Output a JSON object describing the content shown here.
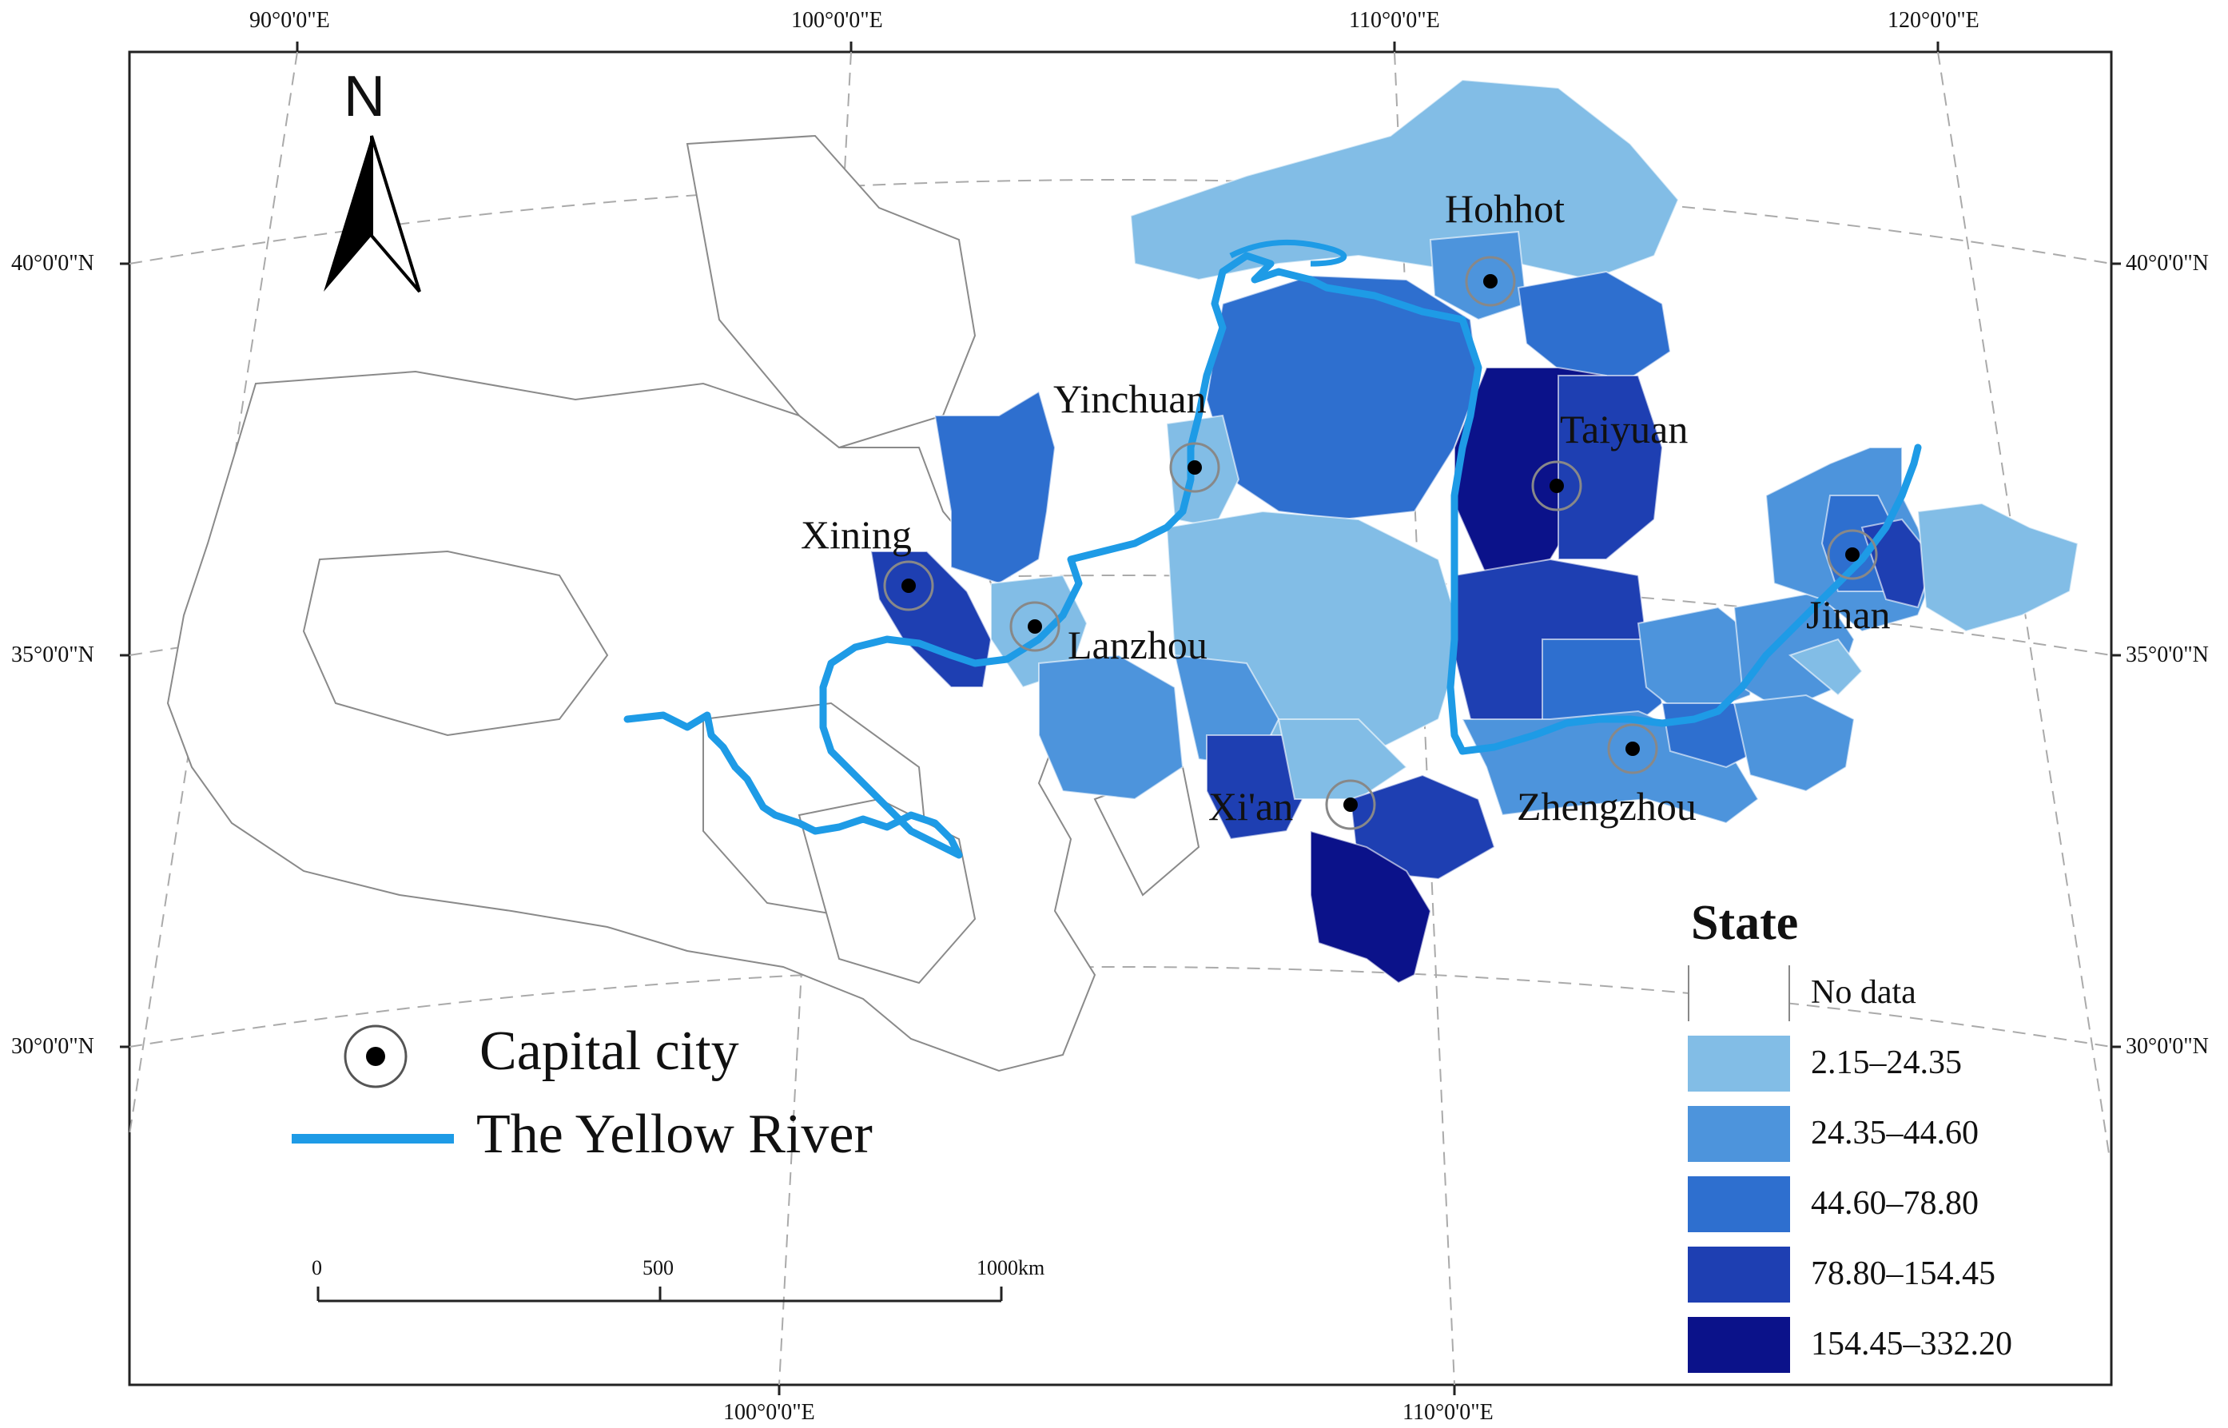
{
  "graticule": {
    "top": [
      "90°0'0\"E",
      "100°0'0\"E",
      "110°0'0\"E",
      "120°0'0\"E"
    ],
    "bottom": [
      "100°0'0\"E",
      "110°0'0\"E"
    ],
    "left": [
      "40°0'0\"N",
      "35°0'0\"N",
      "30°0'0\"N"
    ],
    "right": [
      "40°0'0\"N",
      "35°0'0\"N",
      "30°0'0\"N"
    ]
  },
  "north_arrow": {
    "letter": "N"
  },
  "cities": [
    {
      "name": "Hohhot"
    },
    {
      "name": "Yinchuan"
    },
    {
      "name": "Taiyuan"
    },
    {
      "name": "Xining"
    },
    {
      "name": "Lanzhou"
    },
    {
      "name": "Jinan"
    },
    {
      "name": "Xi'an"
    },
    {
      "name": "Zhengzhou"
    }
  ],
  "legend": {
    "title": "State",
    "classes": [
      {
        "label": "No data",
        "color": "#ffffff"
      },
      {
        "label": "2.15–24.35",
        "color": "#82bde6"
      },
      {
        "label": "24.35–44.60",
        "color": "#4d94dc"
      },
      {
        "label": "44.60–78.80",
        "color": "#2e6fcf"
      },
      {
        "label": "78.80–154.45",
        "color": "#1e3fb2"
      },
      {
        "label": "154.45–332.20",
        "color": "#0b128a"
      }
    ]
  },
  "key": {
    "capital_label": "Capital city",
    "river_label": "The Yellow River",
    "river_color": "#1e9be6"
  },
  "scale_bar": {
    "ticks": [
      "0",
      "500",
      "1000km"
    ]
  }
}
